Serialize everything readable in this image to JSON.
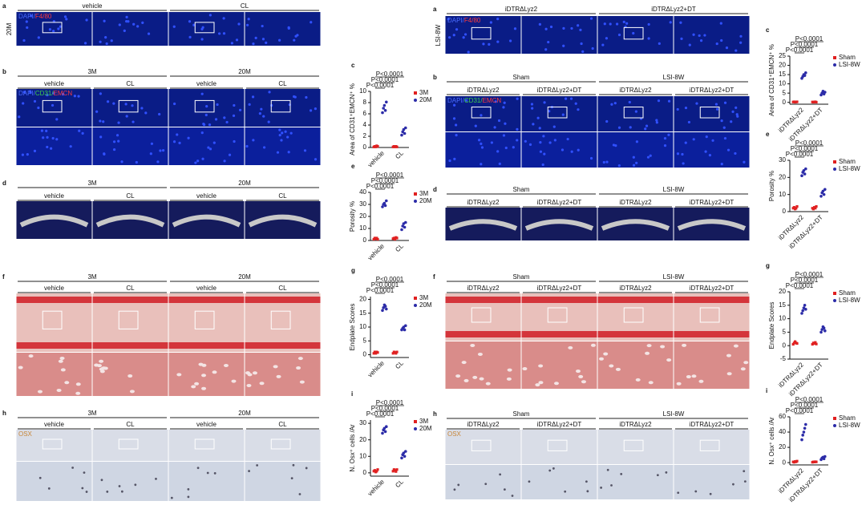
{
  "left": {
    "panels": [
      {
        "label": "a",
        "headers": [
          "vehicle",
          "CL"
        ],
        "row_label": "20M",
        "stain": [
          {
            "text": "DAPI/",
            "color": "#4a6cff"
          },
          {
            "text": "F4/80",
            "color": "#ff3b3b"
          }
        ]
      },
      {
        "label": "b",
        "groups": [
          "3M",
          "20M"
        ],
        "headers": [
          "vehicle",
          "CL",
          "vehicle",
          "CL"
        ],
        "stain": [
          {
            "text": "DAPI/",
            "color": "#4a6cff"
          },
          {
            "text": "CD31/",
            "color": "#3fd24a"
          },
          {
            "text": "EMCN",
            "color": "#ff3b3b"
          }
        ]
      },
      {
        "label": "d",
        "groups": [
          "3M",
          "20M"
        ],
        "headers": [
          "vehicle",
          "CL",
          "vehicle",
          "CL"
        ]
      },
      {
        "label": "f",
        "groups": [
          "3M",
          "20M"
        ],
        "headers": [
          "vehicle",
          "CL",
          "vehicle",
          "CL"
        ]
      },
      {
        "label": "h",
        "groups": [
          "3M",
          "20M"
        ],
        "headers": [
          "vehicle",
          "CL",
          "vehicle",
          "CL"
        ],
        "stain": [
          {
            "text": "OSX",
            "color": "#c8873a"
          }
        ]
      }
    ],
    "charts": [
      {
        "type": "dot",
        "label": "c",
        "ylabel": "Area of CD31⁺EMCN⁺ %",
        "categories": [
          "vehicle",
          "CL"
        ],
        "ylim": [
          0,
          10
        ],
        "yticks": [
          0,
          2,
          4,
          6,
          8,
          10
        ],
        "p_labels": [
          "P<0.0001",
          "P<0.0001",
          "P<0.0001"
        ],
        "series": [
          {
            "name": "3M",
            "color": "#e02020",
            "values": [
              [
                0.1,
                0.2,
                0.1,
                0.3,
                0.2
              ],
              [
                0.1,
                0.2,
                0.1,
                0.2,
                0.1
              ]
            ]
          },
          {
            "name": "20M",
            "color": "#2c2ca8",
            "values": [
              [
                6.2,
                7.0,
                7.5,
                6.6,
                8.1
              ],
              [
                2.2,
                2.8,
                3.2,
                2.5,
                3.5
              ]
            ]
          }
        ]
      },
      {
        "type": "dot",
        "label": "e",
        "ylabel": "Porosity %",
        "categories": [
          "vehicle",
          "CL"
        ],
        "ylim": [
          0,
          40
        ],
        "yticks": [
          0,
          10,
          20,
          30,
          40
        ],
        "p_labels": [
          "P<0.0001",
          "P<0.0001",
          "P<0.0001"
        ],
        "series": [
          {
            "name": "3M",
            "color": "#e02020",
            "values": [
              [
                1,
                2,
                1.5,
                2,
                1
              ],
              [
                1.5,
                2,
                1,
                2.5,
                2
              ]
            ]
          },
          {
            "name": "20M",
            "color": "#2c2ca8",
            "values": [
              [
                28,
                30,
                31,
                29,
                33
              ],
              [
                9,
                12,
                14,
                11,
                15
              ]
            ]
          }
        ]
      },
      {
        "type": "dot",
        "label": "g",
        "ylabel": "Endplate Scores",
        "categories": [
          "vehicle",
          "CL"
        ],
        "ylim": [
          -1,
          21
        ],
        "yticks": [
          0,
          5,
          10,
          15,
          20
        ],
        "p_labels": [
          "P<0.0001",
          "P<0.0001",
          "P<0.0001"
        ],
        "series": [
          {
            "name": "3M",
            "color": "#e02020",
            "values": [
              [
                0.5,
                1,
                0.5,
                1,
                0.8
              ],
              [
                0.5,
                1,
                0.8,
                0.5,
                1
              ]
            ]
          },
          {
            "name": "20M",
            "color": "#2c2ca8",
            "values": [
              [
                16,
                17,
                18,
                17.5,
                16.5
              ],
              [
                9,
                9.5,
                10,
                9,
                10.5
              ]
            ]
          }
        ]
      },
      {
        "type": "dot",
        "label": "i",
        "ylabel": "N. Osx⁺ cells /Ar",
        "categories": [
          "vehicle",
          "CL"
        ],
        "ylim": [
          -2,
          32
        ],
        "yticks": [
          0,
          10,
          20,
          30
        ],
        "p_labels": [
          "P<0.0001",
          "P<0.0001",
          "P<0.0001"
        ],
        "series": [
          {
            "name": "3M",
            "color": "#e02020",
            "values": [
              [
                1,
                1.5,
                0.5,
                1,
                2
              ],
              [
                1,
                2,
                1.5,
                0.8,
                2
              ]
            ]
          },
          {
            "name": "20M",
            "color": "#2c2ca8",
            "values": [
              [
                24,
                26,
                27,
                25,
                28
              ],
              [
                9,
                11,
                12,
                10,
                13
              ]
            ]
          }
        ]
      }
    ]
  },
  "right": {
    "panels": [
      {
        "label": "a",
        "headers": [
          "iDTRΔLyz2",
          "iDTRΔLyz2+DT"
        ],
        "row_label": "LSI-8W",
        "stain": [
          {
            "text": "DAPI/",
            "color": "#4a6cff"
          },
          {
            "text": "F4/80",
            "color": "#ff3b3b"
          }
        ]
      },
      {
        "label": "b",
        "groups": [
          "Sham",
          "LSI-8W"
        ],
        "headers": [
          "iDTRΔLyz2",
          "iDTRΔLyz2+DT",
          "iDTRΔLyz2",
          "iDTRΔLyz2+DT"
        ],
        "stain": [
          {
            "text": "DAPI/",
            "color": "#4a6cff"
          },
          {
            "text": "CD31/",
            "color": "#3fd24a"
          },
          {
            "text": "EMCN",
            "color": "#ff3b3b"
          }
        ]
      },
      {
        "label": "d",
        "groups": [
          "Sham",
          "LSI-8W"
        ],
        "headers": [
          "iDTRΔLyz2",
          "iDTRΔLyz2+DT",
          "iDTRΔLyz2",
          "iDTRΔLyz2+DT"
        ]
      },
      {
        "label": "f",
        "groups": [
          "Sham",
          "LSI-8W"
        ],
        "headers": [
          "iDTRΔLyz2",
          "iDTRΔLyz2+DT",
          "iDTRΔLyz2",
          "iDTRΔLyz2+DT"
        ]
      },
      {
        "label": "h",
        "groups": [
          "Sham",
          "LSI-8W"
        ],
        "headers": [
          "iDTRΔLyz2",
          "iDTRΔLyz2+DT",
          "iDTRΔLyz2",
          "iDTRΔLyz2+DT"
        ],
        "stain": [
          {
            "text": "OSX",
            "color": "#c8873a"
          }
        ]
      }
    ],
    "charts": [
      {
        "type": "dot",
        "label": "c",
        "ylabel": "Area of CD31⁺EMCN⁺ %",
        "categories": [
          "iDTRΔLyz2",
          "iDTRΔLyz2+DT"
        ],
        "ylim": [
          -1,
          25
        ],
        "yticks": [
          0,
          5,
          10,
          15,
          20,
          25
        ],
        "p_labels": [
          "P<0.0001",
          "P<0.0001",
          "P<0.0001"
        ],
        "series": [
          {
            "name": "Sham",
            "color": "#e02020",
            "values": [
              [
                0.2,
                0.3,
                0.1,
                0.2,
                0.3
              ],
              [
                0.2,
                0.1,
                0.2,
                0.3,
                0.1
              ]
            ]
          },
          {
            "name": "LSI-8W",
            "color": "#2c2ca8",
            "values": [
              [
                13,
                14,
                15,
                14.5,
                16
              ],
              [
                4,
                5,
                6,
                4.5,
                5.5
              ]
            ]
          }
        ]
      },
      {
        "type": "dot",
        "label": "e",
        "ylabel": "Porosity %",
        "categories": [
          "iDTRΔLyz2",
          "iDTRΔLyz2+DT"
        ],
        "ylim": [
          0,
          30
        ],
        "yticks": [
          0,
          10,
          20,
          30
        ],
        "p_labels": [
          "P<0.0001",
          "P<0.0001",
          "P<0.0001"
        ],
        "series": [
          {
            "name": "Sham",
            "color": "#e02020",
            "values": [
              [
                2,
                2.5,
                1.5,
                2,
                3
              ],
              [
                2,
                1.5,
                2.5,
                2,
                3
              ]
            ]
          },
          {
            "name": "LSI-8W",
            "color": "#2c2ca8",
            "values": [
              [
                21,
                23,
                24,
                22,
                25
              ],
              [
                9,
                11,
                12,
                10,
                13
              ]
            ]
          }
        ]
      },
      {
        "type": "dot",
        "label": "g",
        "ylabel": "Endplate Scores",
        "categories": [
          "iDTRΔLyz2",
          "iDTRΔLyz2+DT"
        ],
        "ylim": [
          -5,
          20
        ],
        "yticks": [
          -5,
          0,
          5,
          10,
          15,
          20
        ],
        "p_labels": [
          "P<0.0001",
          "P<0.0001",
          "P<0.0001"
        ],
        "series": [
          {
            "name": "Sham",
            "color": "#e02020",
            "values": [
              [
                0.5,
                1,
                1.5,
                1,
                0.8
              ],
              [
                0.5,
                1,
                0.8,
                1.2,
                0.6
              ]
            ]
          },
          {
            "name": "LSI-8W",
            "color": "#2c2ca8",
            "values": [
              [
                12,
                13,
                14,
                15,
                13.5
              ],
              [
                5,
                6,
                7,
                6.5,
                5.5
              ]
            ]
          }
        ]
      },
      {
        "type": "dot",
        "label": "i",
        "ylabel": "N. Osx⁺ cells /Ar",
        "categories": [
          "iDTRΔLyz2",
          "iDTRΔLyz2+DT"
        ],
        "ylim": [
          -3,
          60
        ],
        "yticks": [
          0,
          20,
          40,
          60
        ],
        "p_labels": [
          "P<0.0001",
          "P<0.0001",
          "P<0.0001"
        ],
        "series": [
          {
            "name": "Sham",
            "color": "#e02020",
            "values": [
              [
                1,
                0.5,
                1.5,
                1,
                2
              ],
              [
                0.5,
                1,
                0.8,
                1.2,
                1
              ]
            ]
          },
          {
            "name": "LSI-8W",
            "color": "#2c2ca8",
            "values": [
              [
                30,
                36,
                40,
                45,
                50
              ],
              [
                4,
                6,
                7,
                5,
                8
              ]
            ]
          }
        ]
      }
    ]
  }
}
